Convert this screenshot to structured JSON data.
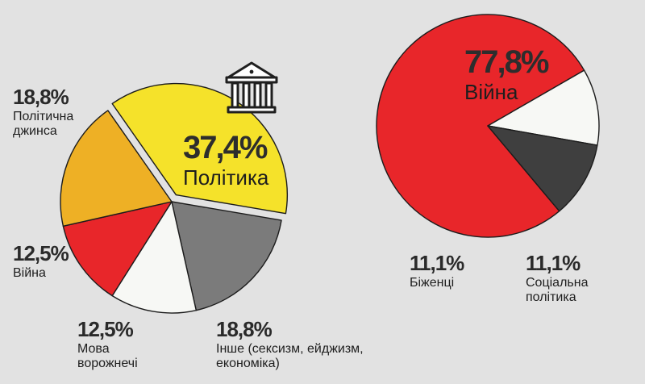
{
  "chart_data": [
    {
      "type": "pie",
      "slices": [
        {
          "label": "Політика",
          "value": 37.4,
          "display": "37,4%",
          "color": "#f5e22a"
        },
        {
          "label": "Інше (сексизм, ейджизм, економіка)",
          "value": 18.8,
          "display": "18,8%",
          "color": "#7b7b7b"
        },
        {
          "label": "Мова ворожнечі",
          "value": 12.5,
          "display": "12,5%",
          "color": "#f7f8f5"
        },
        {
          "label": "Війна",
          "value": 12.5,
          "display": "12,5%",
          "color": "#e8262a"
        },
        {
          "label": "Політична джинса",
          "value": 18.8,
          "display": "18,8%",
          "color": "#eeb025"
        }
      ]
    },
    {
      "type": "pie",
      "slices": [
        {
          "label": "Війна",
          "value": 77.8,
          "display": "77,8%",
          "color": "#e8262a"
        },
        {
          "label": "Соціальна політика",
          "value": 11.1,
          "display": "11,1%",
          "color": "#f7f8f5"
        },
        {
          "label": "Біженці",
          "value": 11.1,
          "display": "11,1%",
          "color": "#3f3f3f"
        }
      ]
    }
  ],
  "icons": {
    "politics": "government-building-icon"
  }
}
